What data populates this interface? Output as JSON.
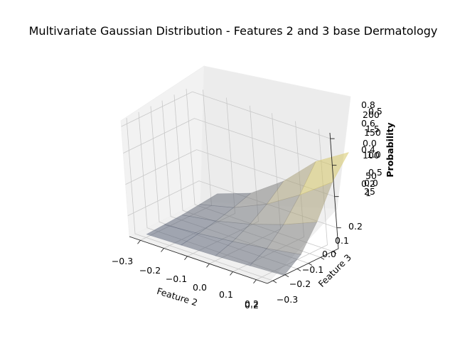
{
  "chart_data": {
    "type": "surface3d",
    "title": "Multivariate Gaussian Distribution - Features 2 and 3 base Dermatology",
    "xlabel": "Feature 2",
    "ylabel": "Feature 3",
    "zlabel": "Probability",
    "x_ticks": [
      "−0.3",
      "−0.2",
      "−0.1",
      "0.0",
      "0.1",
      "0.2"
    ],
    "x_extra_tick": "0.2",
    "y_ticks": [
      "−0.3",
      "−0.2",
      "−0.1",
      "0.0",
      "0.1",
      "0.2"
    ],
    "z_tick_groups": [
      [
        "0.8",
        "0.6",
        "0.4",
        "0.2"
      ],
      [
        "200",
        "150",
        "100",
        "50"
      ],
      [
        "0.5",
        "0.0"
      ],
      [
        "1.5",
        "1.0",
        "0.5",
        "0.0"
      ],
      [
        "25"
      ],
      [
        "1"
      ]
    ],
    "x": [
      -0.3,
      -0.15,
      0.0,
      0.15,
      0.3
    ],
    "y": [
      -0.3,
      -0.15,
      0.0,
      0.15,
      0.3
    ],
    "z_normalized": [
      [
        0.01,
        0.02,
        0.03,
        0.05,
        0.07
      ],
      [
        0.02,
        0.05,
        0.09,
        0.14,
        0.2
      ],
      [
        0.03,
        0.09,
        0.18,
        0.3,
        0.45
      ],
      [
        0.05,
        0.14,
        0.3,
        0.52,
        0.78
      ],
      [
        0.07,
        0.2,
        0.45,
        0.78,
        1.0
      ]
    ],
    "colormap": "cividis",
    "surface_alpha": 0.5,
    "grid": true
  }
}
